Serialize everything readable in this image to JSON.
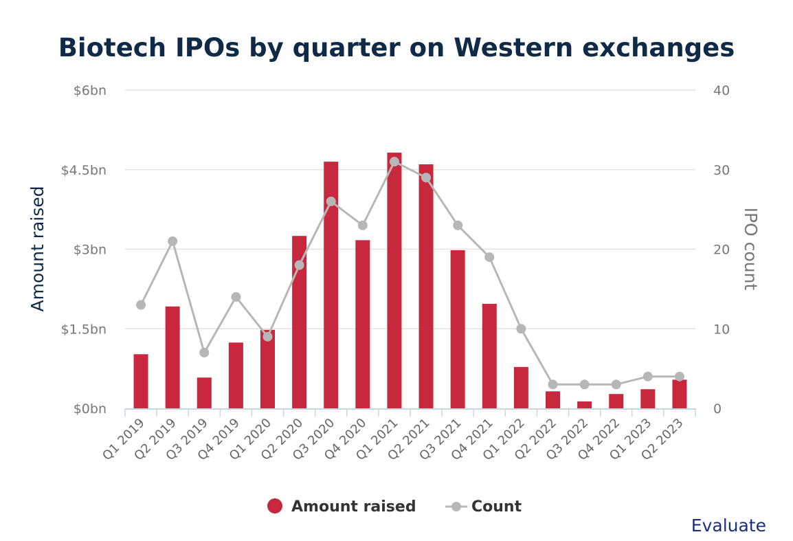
{
  "chart_data": {
    "type": "bar",
    "title": "Biotech IPOs by quarter on Western exchanges",
    "categories": [
      "Q1 2019",
      "Q2 2019",
      "Q3 2019",
      "Q4 2019",
      "Q1 2020",
      "Q2 2020",
      "Q3 2020",
      "Q4 2020",
      "Q1 2021",
      "Q2 2021",
      "Q3 2021",
      "Q4 2021",
      "Q1 2022",
      "Q2 2022",
      "Q3 2022",
      "Q4 2022",
      "Q1 2023",
      "Q2 2023"
    ],
    "series": [
      {
        "name": "Amount raised",
        "type": "bar",
        "axis": "left",
        "unit": "$bn",
        "color": "#c8283e",
        "values": [
          1.02,
          1.92,
          0.58,
          1.24,
          1.48,
          3.25,
          4.65,
          3.17,
          4.82,
          4.6,
          2.98,
          1.97,
          0.78,
          0.32,
          0.13,
          0.27,
          0.36,
          0.54
        ]
      },
      {
        "name": "Count",
        "type": "line",
        "axis": "right",
        "color": "#b7b7b7",
        "values": [
          13,
          21,
          7,
          14,
          9,
          18,
          26,
          23,
          31,
          29,
          23,
          19,
          10,
          3,
          3,
          3,
          4,
          4
        ]
      }
    ],
    "ylabel": "Amount raised",
    "y2label": "IPO count",
    "ylim": [
      0,
      6
    ],
    "y2lim": [
      0,
      40
    ],
    "yticks": [
      "$0bn",
      "$1.5bn",
      "$3bn",
      "$4.5bn",
      "$6bn"
    ],
    "ytick_values": [
      0,
      1.5,
      3,
      4.5,
      6
    ],
    "y2ticks": [
      "0",
      "10",
      "20",
      "30",
      "40"
    ],
    "y2tick_values": [
      0,
      10,
      20,
      30,
      40
    ],
    "legend": "bottom",
    "grid": true
  },
  "brand": "Evaluate"
}
